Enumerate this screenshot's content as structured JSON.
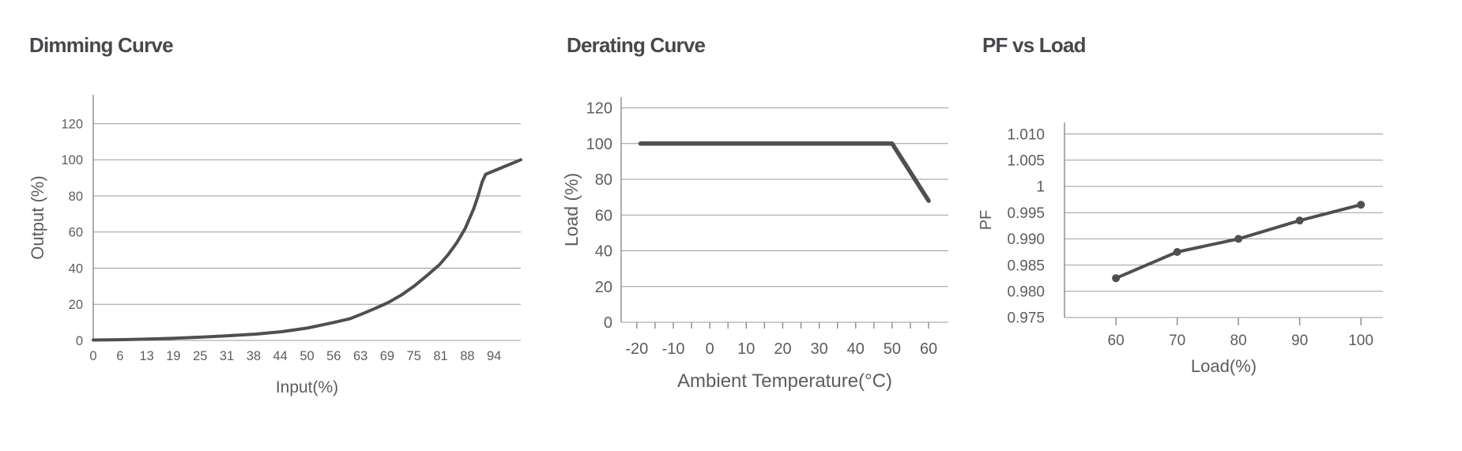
{
  "page": {
    "background": "#ffffff"
  },
  "colors": {
    "line": "#4d5053",
    "grid": "#9b9b9b",
    "spine": "#8a8a8a",
    "tick_text": "#5b5d60",
    "title_text": "#45484d"
  },
  "chart_data": [
    {
      "type": "line",
      "title": "Dimming Curve",
      "xlabel": "Input(%)",
      "ylabel": "Output (%)",
      "x_tick_labels": [
        "0",
        "6",
        "13",
        "19",
        "25",
        "31",
        "38",
        "44",
        "50",
        "56",
        "63",
        "69",
        "75",
        "81",
        "88",
        "94"
      ],
      "x_tick_values": [
        0,
        6.25,
        12.5,
        18.75,
        25,
        31.25,
        37.5,
        43.75,
        50,
        56.25,
        62.5,
        68.75,
        75,
        81.25,
        87.5,
        93.75
      ],
      "y_tick_labels": [
        "0",
        "20",
        "40",
        "60",
        "80",
        "100",
        "120"
      ],
      "y_tick_values": [
        0,
        20,
        40,
        60,
        80,
        100,
        120
      ],
      "xlim": [
        0,
        100
      ],
      "ylim": [
        0,
        136
      ],
      "grid": "horizontal",
      "legend": "none",
      "markers": false,
      "points": [
        [
          0,
          0.2
        ],
        [
          6,
          0.4
        ],
        [
          13,
          0.8
        ],
        [
          19,
          1.2
        ],
        [
          25,
          1.8
        ],
        [
          31,
          2.5
        ],
        [
          38,
          3.5
        ],
        [
          44,
          4.8
        ],
        [
          50,
          6.8
        ],
        [
          56,
          9.8
        ],
        [
          60,
          12
        ],
        [
          63,
          14.8
        ],
        [
          66,
          17.8
        ],
        [
          69,
          21
        ],
        [
          72,
          25
        ],
        [
          75,
          30
        ],
        [
          78,
          35.8
        ],
        [
          81,
          42
        ],
        [
          83,
          47.5
        ],
        [
          85,
          54
        ],
        [
          87,
          62
        ],
        [
          89,
          73
        ],
        [
          90,
          80
        ],
        [
          91,
          88
        ],
        [
          91.8,
          92
        ],
        [
          100,
          100
        ]
      ]
    },
    {
      "type": "line",
      "title": "Derating Curve",
      "xlabel": "Ambient Temperature(°C)",
      "ylabel": "Load (%)",
      "x_tick_labels": [
        "-20",
        "-10",
        "0",
        "10",
        "20",
        "30",
        "40",
        "50",
        "60"
      ],
      "x_tick_values": [
        -20,
        -10,
        0,
        10,
        20,
        30,
        40,
        50,
        60
      ],
      "x_minor_tick_step": 5,
      "y_tick_labels": [
        "0",
        "20",
        "40",
        "60",
        "80",
        "100",
        "120"
      ],
      "y_tick_values": [
        0,
        20,
        40,
        60,
        80,
        100,
        120
      ],
      "xlim": [
        -24.3,
        65.4
      ],
      "ylim": [
        0,
        126
      ],
      "grid": "horizontal",
      "legend": "none",
      "markers": false,
      "points": [
        [
          -19,
          100
        ],
        [
          50,
          100
        ],
        [
          60,
          68
        ]
      ]
    },
    {
      "type": "line",
      "title": "PF vs Load",
      "xlabel": "Load(%)",
      "ylabel": "PF",
      "x_tick_labels": [
        "60",
        "70",
        "80",
        "90",
        "100"
      ],
      "x_tick_values": [
        60,
        70,
        80,
        90,
        100
      ],
      "y_tick_labels": [
        "0.975",
        "0.980",
        "0.985",
        "0.990",
        "0.995",
        "1",
        "1.005",
        "1.010"
      ],
      "y_tick_values": [
        0.975,
        0.98,
        0.985,
        0.99,
        0.995,
        1.0,
        1.005,
        1.01
      ],
      "xlim": [
        51.6,
        103.6
      ],
      "ylim": [
        0.975,
        1.0122
      ],
      "grid": "horizontal",
      "legend": "none",
      "markers": true,
      "points": [
        [
          60,
          0.9825
        ],
        [
          70,
          0.9875
        ],
        [
          80,
          0.99
        ],
        [
          90,
          0.9935
        ],
        [
          100,
          0.9965
        ]
      ]
    }
  ]
}
